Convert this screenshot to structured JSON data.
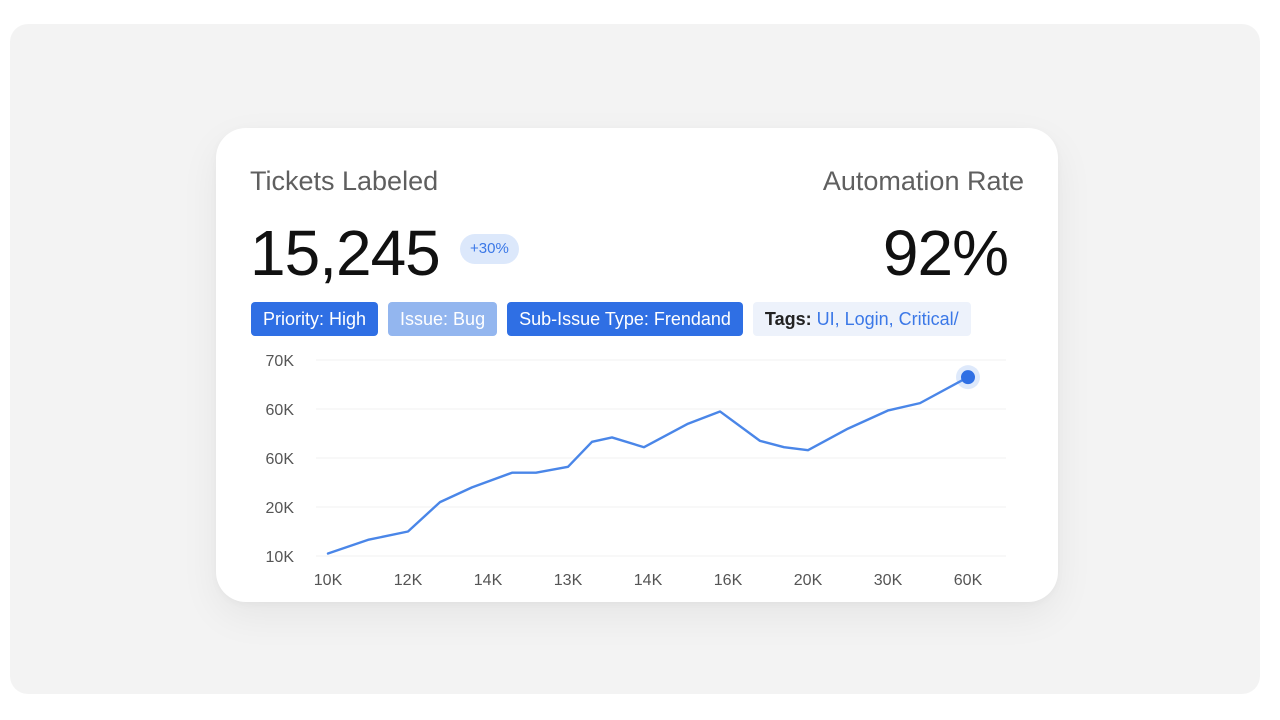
{
  "cards": {
    "left_label": "Tickets Labeled",
    "left_value": "15,245",
    "delta": "+30%",
    "right_label": "Automation Rate",
    "right_value": "92%"
  },
  "filters": [
    {
      "label": "Priority: High"
    },
    {
      "label": "Issue: Bug"
    },
    {
      "label": "Sub-Issue Type: Frendand"
    }
  ],
  "tags_chip": {
    "label": "Tags:",
    "value": "UI, Login, Critical/"
  },
  "colors": {
    "accent": "#3b78e7",
    "chip": "#2f6fe4",
    "chip_light": "#93b6ef",
    "line": "#4a86e8"
  },
  "chart_data": {
    "type": "line",
    "title": "",
    "xlabel": "",
    "ylabel": "",
    "categories": [
      "10K",
      "12K",
      "14K",
      "13K",
      "14K",
      "16K",
      "20K",
      "30K",
      "60K"
    ],
    "y_ticks": [
      "10K",
      "20K",
      "60K",
      "60K",
      "70K"
    ],
    "grid": true,
    "series": [
      {
        "x": [
          0,
          0.5,
          1,
          1.4,
          1.8,
          2.3,
          2.6,
          3,
          3.3,
          3.55,
          3.95,
          4.5,
          4.9,
          5.4,
          5.7,
          6,
          6.5,
          7,
          7.4,
          8
        ],
        "y": [
          0.05,
          0.33,
          0.5,
          1.1,
          1.4,
          1.7,
          1.7,
          1.82,
          2.33,
          2.42,
          2.22,
          2.7,
          2.95,
          2.35,
          2.22,
          2.16,
          2.6,
          2.97,
          3.12,
          3.65
        ]
      }
    ],
    "marker_last_point": true
  }
}
